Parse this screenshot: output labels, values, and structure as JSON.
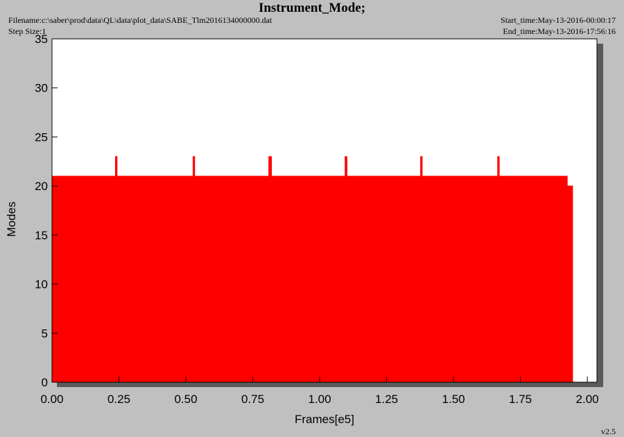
{
  "chart_data": {
    "type": "area",
    "title": "Instrument_Mode;",
    "filename": "Filename:c:\\saber\\prod\\data\\QL\\data\\plot_data\\SABE_Tlm2016134000000.dat",
    "step_size": "Step Size:1",
    "start_time": "Start_time:May-13-2016-00:00:17",
    "end_time": "End_time:May-13-2016-17:56:16",
    "version": "v2.5",
    "xlabel": "Frames[e5]",
    "ylabel": "Modes",
    "x": [
      0,
      0.237,
      0.237,
      0.243,
      0.243,
      0.527,
      0.527,
      0.533,
      0.533,
      0.81,
      0.81,
      0.82,
      0.82,
      1.095,
      1.095,
      1.102,
      1.102,
      1.377,
      1.377,
      1.383,
      1.383,
      1.665,
      1.665,
      1.671,
      1.671,
      1.925,
      1.925,
      1.945
    ],
    "series": [
      {
        "name": "Modes",
        "color": "#ff0000",
        "values": [
          21,
          21,
          23,
          23,
          21,
          21,
          23,
          23,
          21,
          21,
          23,
          23,
          21,
          21,
          23,
          23,
          21,
          21,
          23,
          23,
          21,
          21,
          23,
          23,
          21,
          21,
          20,
          20
        ]
      }
    ],
    "xlim": [
      0,
      2.036
    ],
    "ylim": [
      0,
      35
    ],
    "xticks": [
      {
        "value": 0,
        "label": "0.00"
      },
      {
        "value": 0.25,
        "label": "0.25"
      },
      {
        "value": 0.5,
        "label": "0.50"
      },
      {
        "value": 0.75,
        "label": "0.75"
      },
      {
        "value": 1,
        "label": "1.00"
      },
      {
        "value": 1.25,
        "label": "1.25"
      },
      {
        "value": 1.5,
        "label": "1.50"
      },
      {
        "value": 1.75,
        "label": "1.75"
      },
      {
        "value": 2,
        "label": "2.00"
      }
    ],
    "yticks": [
      0,
      5,
      10,
      15,
      20,
      25,
      30,
      35
    ]
  }
}
